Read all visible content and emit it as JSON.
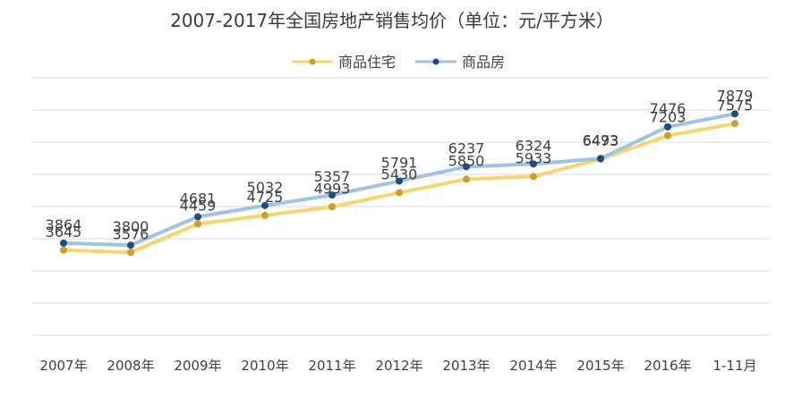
{
  "chart_data": {
    "type": "line",
    "title": "2007-2017年全国房地产销售均价（单位：元/平方米）",
    "categories": [
      "2007年",
      "2008年",
      "2009年",
      "2010年",
      "2011年",
      "2012年",
      "2013年",
      "2014年",
      "2015年",
      "2016年",
      "1-11月"
    ],
    "series": [
      {
        "name": "商品住宅",
        "color": "#f5d76e",
        "marker_color": "#c9a227",
        "values": [
          3645,
          3576,
          4459,
          4725,
          4993,
          5430,
          5850,
          5933,
          6473,
          7203,
          7575
        ]
      },
      {
        "name": "商品房",
        "color": "#9dc3e6",
        "marker_color": "#1f4e79",
        "values": [
          3864,
          3800,
          4681,
          5032,
          5357,
          5791,
          6237,
          6324,
          6493,
          7476,
          7879
        ]
      }
    ],
    "ylim": [
      1000,
      9000
    ],
    "grid": true,
    "legend": "top-center",
    "xlabel": "",
    "ylabel": ""
  }
}
